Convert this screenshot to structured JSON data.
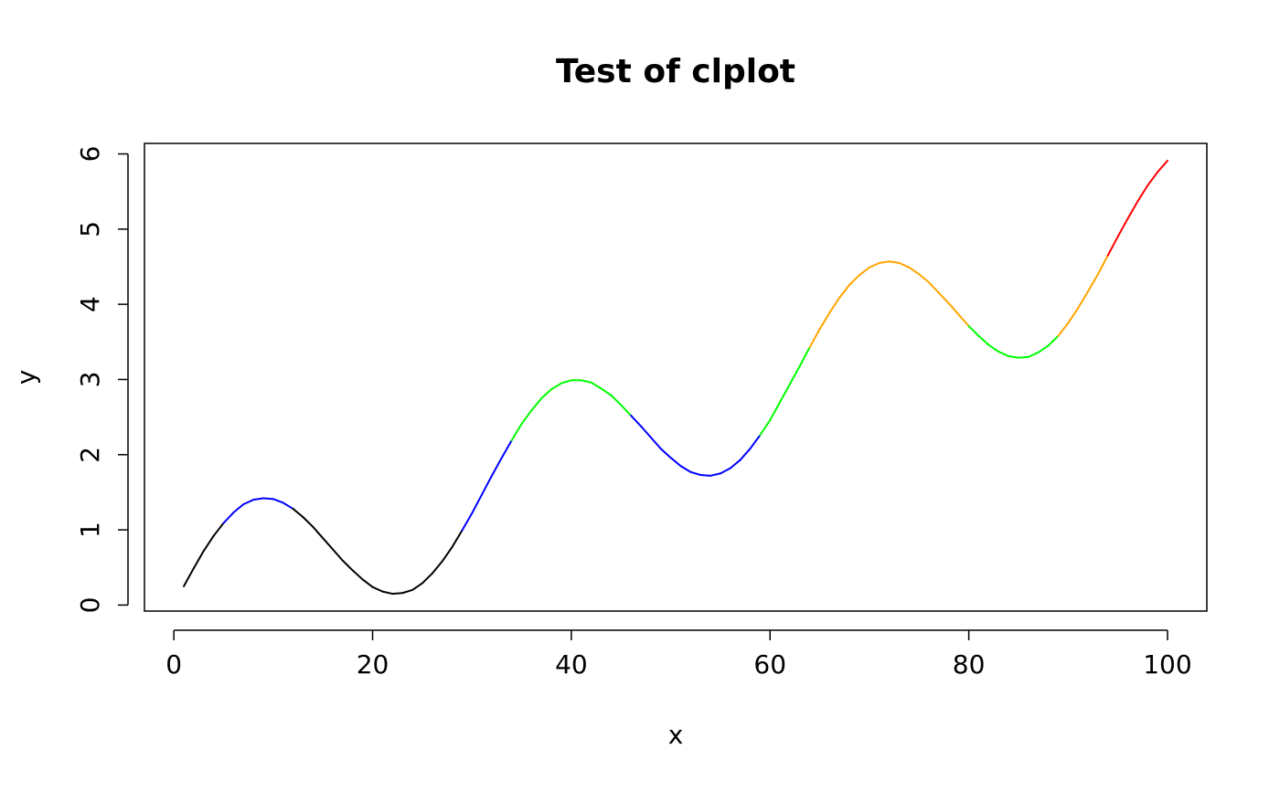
{
  "chart_data": {
    "type": "line",
    "title": "Test of clplot",
    "xlabel": "x",
    "ylabel": "y",
    "x": [
      1,
      2,
      3,
      4,
      5,
      6,
      7,
      8,
      9,
      10,
      11,
      12,
      13,
      14,
      15,
      16,
      17,
      18,
      19,
      20,
      21,
      22,
      23,
      24,
      25,
      26,
      27,
      28,
      29,
      30,
      31,
      32,
      33,
      34,
      35,
      36,
      37,
      38,
      39,
      40,
      41,
      42,
      43,
      44,
      45,
      46,
      47,
      48,
      49,
      50,
      51,
      52,
      53,
      54,
      55,
      56,
      57,
      58,
      59,
      60,
      61,
      62,
      63,
      64,
      65,
      66,
      67,
      68,
      69,
      70,
      71,
      72,
      73,
      74,
      75,
      76,
      77,
      78,
      79,
      80,
      81,
      82,
      83,
      84,
      85,
      86,
      87,
      88,
      89,
      90,
      91,
      92,
      93,
      94,
      95,
      96,
      97,
      98,
      99,
      100
    ],
    "values": [
      0.25,
      0.49,
      0.72,
      0.92,
      1.09,
      1.23,
      1.34,
      1.4,
      1.42,
      1.41,
      1.36,
      1.28,
      1.17,
      1.04,
      0.89,
      0.74,
      0.59,
      0.46,
      0.34,
      0.24,
      0.18,
      0.15,
      0.16,
      0.2,
      0.29,
      0.42,
      0.58,
      0.77,
      0.99,
      1.22,
      1.47,
      1.72,
      1.96,
      2.19,
      2.41,
      2.59,
      2.75,
      2.87,
      2.95,
      2.99,
      2.99,
      2.96,
      2.88,
      2.79,
      2.66,
      2.52,
      2.38,
      2.23,
      2.08,
      1.96,
      1.85,
      1.77,
      1.73,
      1.72,
      1.75,
      1.82,
      1.93,
      2.08,
      2.26,
      2.46,
      2.7,
      2.94,
      3.18,
      3.43,
      3.67,
      3.89,
      4.09,
      4.26,
      4.39,
      4.49,
      4.55,
      4.57,
      4.55,
      4.49,
      4.4,
      4.29,
      4.15,
      4.01,
      3.86,
      3.71,
      3.58,
      3.46,
      3.37,
      3.31,
      3.29,
      3.3,
      3.36,
      3.45,
      3.58,
      3.75,
      3.95,
      4.17,
      4.4,
      4.65,
      4.9,
      5.14,
      5.37,
      5.58,
      5.76,
      5.91
    ],
    "colors": [
      "#000000",
      "#000000",
      "#000000",
      "#000000",
      "#000000",
      "#0000ff",
      "#0000ff",
      "#0000ff",
      "#0000ff",
      "#0000ff",
      "#0000ff",
      "#0000ff",
      "#000000",
      "#000000",
      "#000000",
      "#000000",
      "#000000",
      "#000000",
      "#000000",
      "#000000",
      "#000000",
      "#000000",
      "#000000",
      "#000000",
      "#000000",
      "#000000",
      "#000000",
      "#000000",
      "#000000",
      "#0000ff",
      "#0000ff",
      "#0000ff",
      "#0000ff",
      "#0000ff",
      "#00ff00",
      "#00ff00",
      "#00ff00",
      "#00ff00",
      "#00ff00",
      "#00ff00",
      "#00ff00",
      "#00ff00",
      "#00ff00",
      "#00ff00",
      "#00ff00",
      "#00ff00",
      "#0000ff",
      "#0000ff",
      "#0000ff",
      "#0000ff",
      "#0000ff",
      "#0000ff",
      "#0000ff",
      "#0000ff",
      "#0000ff",
      "#0000ff",
      "#0000ff",
      "#0000ff",
      "#0000ff",
      "#00ff00",
      "#00ff00",
      "#00ff00",
      "#00ff00",
      "#00ff00",
      "#ffa500",
      "#ffa500",
      "#ffa500",
      "#ffa500",
      "#ffa500",
      "#ffa500",
      "#ffa500",
      "#ffa500",
      "#ffa500",
      "#ffa500",
      "#ffa500",
      "#ffa500",
      "#ffa500",
      "#ffa500",
      "#ffa500",
      "#ffa500",
      "#00ff00",
      "#00ff00",
      "#00ff00",
      "#00ff00",
      "#00ff00",
      "#00ff00",
      "#00ff00",
      "#00ff00",
      "#00ff00",
      "#ffa500",
      "#ffa500",
      "#ffa500",
      "#ffa500",
      "#ffa500",
      "#ff0000",
      "#ff0000",
      "#ff0000",
      "#ff0000",
      "#ff0000",
      "#ff0000"
    ],
    "xlim": [
      -2.96,
      103.96
    ],
    "ylim": [
      -0.08,
      6.14
    ],
    "xticks": [
      0,
      20,
      40,
      60,
      80,
      100
    ],
    "yticks": [
      0,
      1,
      2,
      3,
      4,
      5,
      6
    ]
  }
}
